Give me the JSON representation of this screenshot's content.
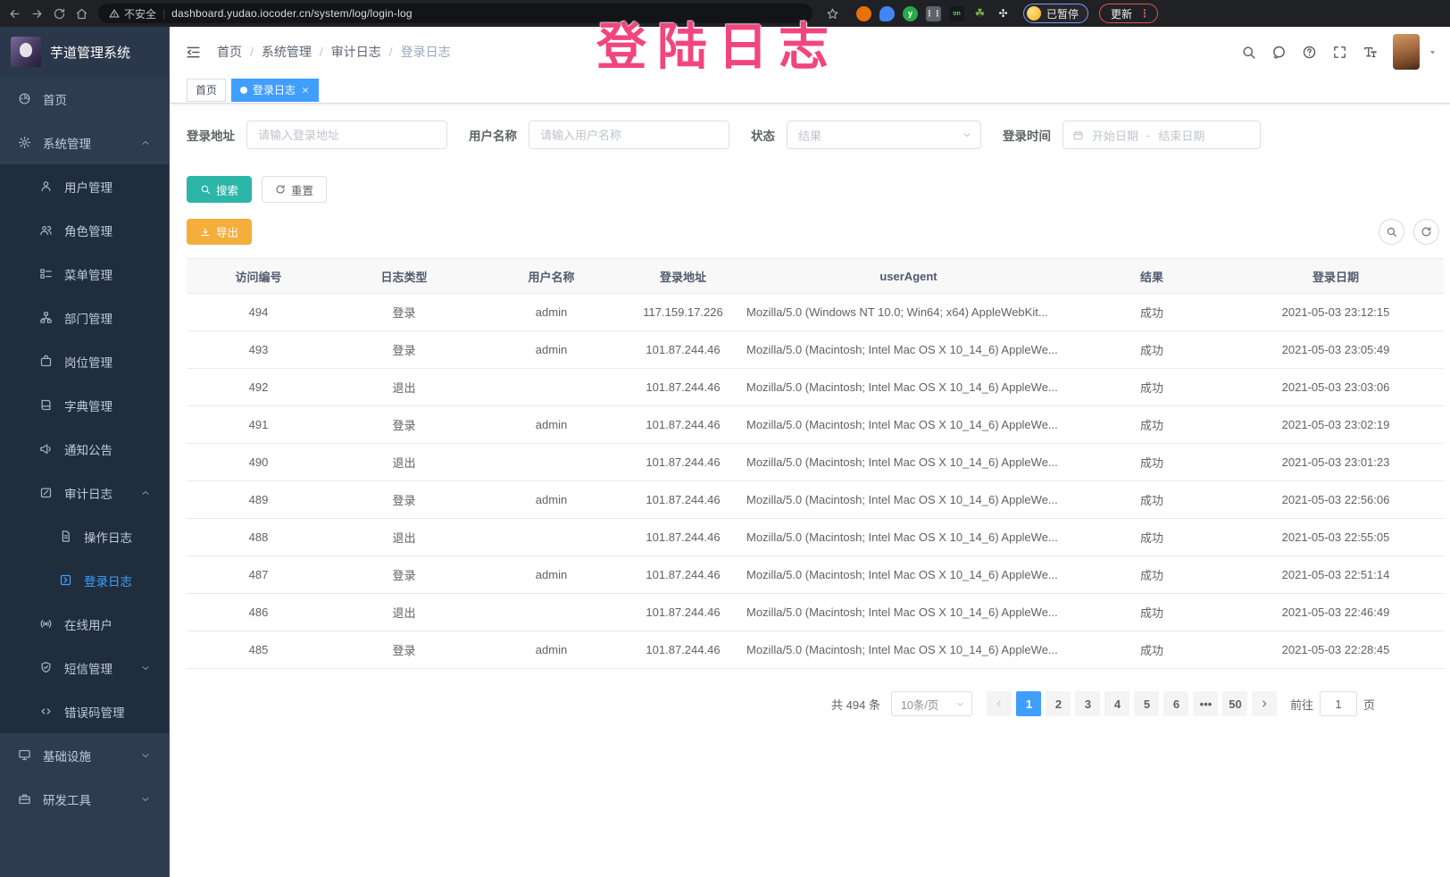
{
  "browser": {
    "security_label": "不安全",
    "url": "dashboard.yudao.iocoder.cn/system/log/login-log",
    "extension_on_badge": "on",
    "profile_chip": "已暂停",
    "update_button": "更新"
  },
  "overlay_note": {
    "text": "登陆日志",
    "color": "#F2457D"
  },
  "sidebar": {
    "logo_title": "芋道管理系统",
    "items": [
      {
        "label": "首页",
        "icon": "dashboard",
        "level": 1
      },
      {
        "label": "系统管理",
        "icon": "gear",
        "level": 1,
        "arrow": "up"
      },
      {
        "label": "用户管理",
        "icon": "user",
        "level": 2,
        "sub": true
      },
      {
        "label": "角色管理",
        "icon": "users",
        "level": 2,
        "sub": true
      },
      {
        "label": "菜单管理",
        "icon": "menu-tree",
        "level": 2,
        "sub": true
      },
      {
        "label": "部门管理",
        "icon": "org-tree",
        "level": 2,
        "sub": true
      },
      {
        "label": "岗位管理",
        "icon": "badge",
        "level": 2,
        "sub": true
      },
      {
        "label": "字典管理",
        "icon": "book",
        "level": 2,
        "sub": true
      },
      {
        "label": "通知公告",
        "icon": "megaphone",
        "level": 2,
        "sub": true
      },
      {
        "label": "审计日志",
        "icon": "edit",
        "level": 2,
        "sub": true,
        "arrow": "up"
      },
      {
        "label": "操作日志",
        "icon": "doc",
        "level": 3,
        "sub": true
      },
      {
        "label": "登录日志",
        "icon": "login-log",
        "level": 3,
        "sub": true,
        "active": true
      },
      {
        "label": "在线用户",
        "icon": "online",
        "level": 2,
        "sub": true
      },
      {
        "label": "短信管理",
        "icon": "shield",
        "level": 2,
        "sub": true,
        "arrow": "down"
      },
      {
        "label": "错误码管理",
        "icon": "code",
        "level": 2,
        "sub": true
      },
      {
        "label": "基础设施",
        "icon": "monitor",
        "level": 1,
        "arrow": "down"
      },
      {
        "label": "研发工具",
        "icon": "tool",
        "level": 1,
        "arrow": "down"
      }
    ]
  },
  "header": {
    "breadcrumb": [
      "首页",
      "系统管理",
      "审计日志",
      "登录日志"
    ]
  },
  "tags": [
    {
      "label": "首页",
      "active": false
    },
    {
      "label": "登录日志",
      "active": true,
      "closable": true
    }
  ],
  "filters": {
    "address": {
      "label": "登录地址",
      "placeholder": "请输入登录地址"
    },
    "username": {
      "label": "用户名称",
      "placeholder": "请输入用户名称"
    },
    "status": {
      "label": "状态",
      "placeholder": "结果"
    },
    "time": {
      "label": "登录时间",
      "start_placeholder": "开始日期",
      "separator": "-",
      "end_placeholder": "结束日期"
    }
  },
  "actions": {
    "search": "搜索",
    "reset": "重置",
    "export": "导出"
  },
  "table": {
    "columns": [
      "访问编号",
      "日志类型",
      "用户名称",
      "登录地址",
      "userAgent",
      "结果",
      "登录日期"
    ],
    "rows": [
      [
        "494",
        "登录",
        "admin",
        "117.159.17.226",
        "Mozilla/5.0 (Windows NT 10.0; Win64; x64) AppleWebKit...",
        "成功",
        "2021-05-03 23:12:15"
      ],
      [
        "493",
        "登录",
        "admin",
        "101.87.244.46",
        "Mozilla/5.0 (Macintosh; Intel Mac OS X 10_14_6) AppleWe...",
        "成功",
        "2021-05-03 23:05:49"
      ],
      [
        "492",
        "退出",
        "",
        "101.87.244.46",
        "Mozilla/5.0 (Macintosh; Intel Mac OS X 10_14_6) AppleWe...",
        "成功",
        "2021-05-03 23:03:06"
      ],
      [
        "491",
        "登录",
        "admin",
        "101.87.244.46",
        "Mozilla/5.0 (Macintosh; Intel Mac OS X 10_14_6) AppleWe...",
        "成功",
        "2021-05-03 23:02:19"
      ],
      [
        "490",
        "退出",
        "",
        "101.87.244.46",
        "Mozilla/5.0 (Macintosh; Intel Mac OS X 10_14_6) AppleWe...",
        "成功",
        "2021-05-03 23:01:23"
      ],
      [
        "489",
        "登录",
        "admin",
        "101.87.244.46",
        "Mozilla/5.0 (Macintosh; Intel Mac OS X 10_14_6) AppleWe...",
        "成功",
        "2021-05-03 22:56:06"
      ],
      [
        "488",
        "退出",
        "",
        "101.87.244.46",
        "Mozilla/5.0 (Macintosh; Intel Mac OS X 10_14_6) AppleWe...",
        "成功",
        "2021-05-03 22:55:05"
      ],
      [
        "487",
        "登录",
        "admin",
        "101.87.244.46",
        "Mozilla/5.0 (Macintosh; Intel Mac OS X 10_14_6) AppleWe...",
        "成功",
        "2021-05-03 22:51:14"
      ],
      [
        "486",
        "退出",
        "",
        "101.87.244.46",
        "Mozilla/5.0 (Macintosh; Intel Mac OS X 10_14_6) AppleWe...",
        "成功",
        "2021-05-03 22:46:49"
      ],
      [
        "485",
        "登录",
        "admin",
        "101.87.244.46",
        "Mozilla/5.0 (Macintosh; Intel Mac OS X 10_14_6) AppleWe...",
        "成功",
        "2021-05-03 22:28:45"
      ]
    ]
  },
  "pagination": {
    "total": "共 494 条",
    "page_size": "10条/页",
    "pages": [
      "1",
      "2",
      "3",
      "4",
      "5",
      "6",
      "•••",
      "50"
    ],
    "active_page": "1",
    "goto_label": "前往",
    "goto_value": "1",
    "page_label": "页"
  },
  "colors": {
    "primary": "#409EFF",
    "search_teal": "#2BB6A8",
    "export_orange": "#F3AE3C",
    "overlay_pink": "#F2457D",
    "sidebar_bg": "#2E3C50",
    "submenu_bg": "#1F2D3D"
  }
}
